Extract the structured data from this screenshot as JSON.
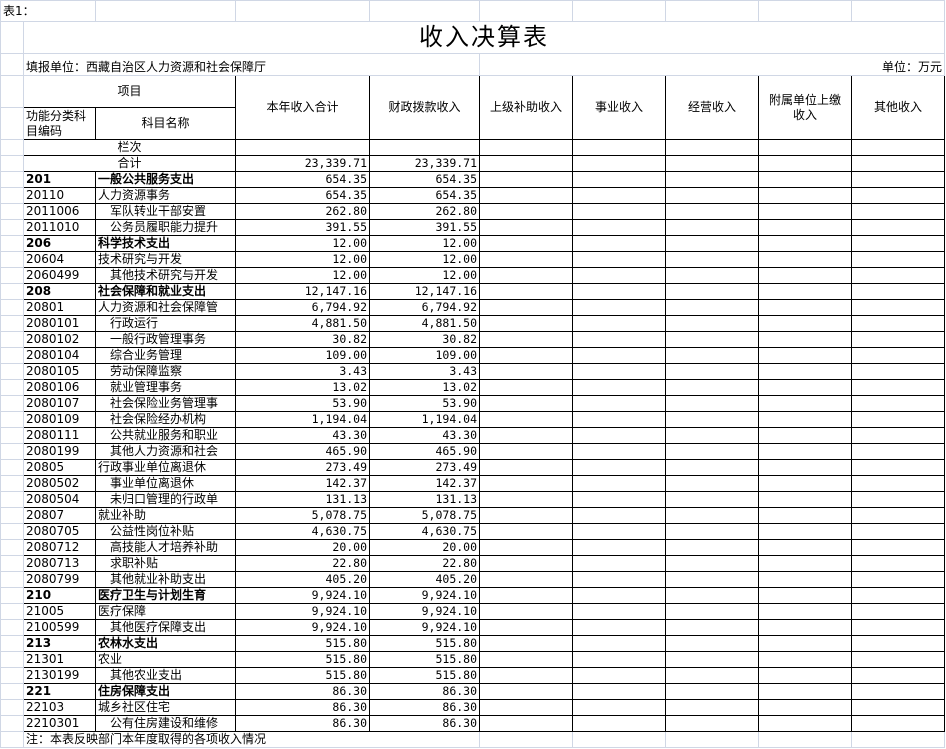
{
  "sheet_label": "表1：",
  "title": "收入决算表",
  "unit_org": "填报单位：西藏自治区人力资源和社会保障厅",
  "unit": "单位：万元",
  "headers": {
    "item": "项目",
    "code": "功能分类科目编码",
    "name": "科目名称",
    "total": "本年收入合计",
    "fiscal": "财政拨款收入",
    "upper_subsidy": "上级补助收入",
    "business": "事业收入",
    "operating": "经营收入",
    "affiliated": "附属单位上缴收入",
    "other": "其他收入"
  },
  "column_index_label": "栏次",
  "sum_row": {
    "label": "合计",
    "total": "23,339.71",
    "fiscal": "23,339.71"
  },
  "rows": [
    {
      "code": "201",
      "name": "一般公共服务支出",
      "level": 1,
      "total": "654.35",
      "fiscal": "654.35"
    },
    {
      "code": "20110",
      "name": "人力资源事务",
      "level": 2,
      "total": "654.35",
      "fiscal": "654.35"
    },
    {
      "code": "2011006",
      "name": "军队转业干部安置",
      "level": 3,
      "total": "262.80",
      "fiscal": "262.80"
    },
    {
      "code": "2011010",
      "name": "公务员履职能力提升",
      "level": 3,
      "total": "391.55",
      "fiscal": "391.55"
    },
    {
      "code": "206",
      "name": "科学技术支出",
      "level": 1,
      "total": "12.00",
      "fiscal": "12.00"
    },
    {
      "code": "20604",
      "name": "技术研究与开发",
      "level": 2,
      "total": "12.00",
      "fiscal": "12.00"
    },
    {
      "code": "2060499",
      "name": "其他技术研究与开发",
      "level": 3,
      "total": "12.00",
      "fiscal": "12.00"
    },
    {
      "code": "208",
      "name": "社会保障和就业支出",
      "level": 1,
      "total": "12,147.16",
      "fiscal": "12,147.16"
    },
    {
      "code": "20801",
      "name": "人力资源和社会保障管",
      "level": 2,
      "total": "6,794.92",
      "fiscal": "6,794.92"
    },
    {
      "code": "2080101",
      "name": "行政运行",
      "level": 3,
      "total": "4,881.50",
      "fiscal": "4,881.50"
    },
    {
      "code": "2080102",
      "name": "一般行政管理事务",
      "level": 3,
      "total": "30.82",
      "fiscal": "30.82"
    },
    {
      "code": "2080104",
      "name": "综合业务管理",
      "level": 3,
      "total": "109.00",
      "fiscal": "109.00"
    },
    {
      "code": "2080105",
      "name": "劳动保障监察",
      "level": 3,
      "total": "3.43",
      "fiscal": "3.43"
    },
    {
      "code": "2080106",
      "name": "就业管理事务",
      "level": 3,
      "total": "13.02",
      "fiscal": "13.02"
    },
    {
      "code": "2080107",
      "name": "社会保险业务管理事",
      "level": 3,
      "total": "53.90",
      "fiscal": "53.90"
    },
    {
      "code": "2080109",
      "name": "社会保险经办机构",
      "level": 3,
      "total": "1,194.04",
      "fiscal": "1,194.04"
    },
    {
      "code": "2080111",
      "name": "公共就业服务和职业",
      "level": 3,
      "total": "43.30",
      "fiscal": "43.30"
    },
    {
      "code": "2080199",
      "name": "其他人力资源和社会",
      "level": 3,
      "total": "465.90",
      "fiscal": "465.90"
    },
    {
      "code": "20805",
      "name": "行政事业单位离退休",
      "level": 2,
      "total": "273.49",
      "fiscal": "273.49"
    },
    {
      "code": "2080502",
      "name": "事业单位离退休",
      "level": 3,
      "total": "142.37",
      "fiscal": "142.37"
    },
    {
      "code": "2080504",
      "name": "未归口管理的行政单",
      "level": 3,
      "total": "131.13",
      "fiscal": "131.13"
    },
    {
      "code": "20807",
      "name": "就业补助",
      "level": 2,
      "total": "5,078.75",
      "fiscal": "5,078.75"
    },
    {
      "code": "2080705",
      "name": "公益性岗位补贴",
      "level": 3,
      "total": "4,630.75",
      "fiscal": "4,630.75"
    },
    {
      "code": "2080712",
      "name": "高技能人才培养补助",
      "level": 3,
      "total": "20.00",
      "fiscal": "20.00"
    },
    {
      "code": "2080713",
      "name": "求职补贴",
      "level": 3,
      "total": "22.80",
      "fiscal": "22.80"
    },
    {
      "code": "2080799",
      "name": "其他就业补助支出",
      "level": 3,
      "total": "405.20",
      "fiscal": "405.20"
    },
    {
      "code": "210",
      "name": "医疗卫生与计划生育",
      "level": 1,
      "total": "9,924.10",
      "fiscal": "9,924.10"
    },
    {
      "code": "21005",
      "name": "医疗保障",
      "level": 2,
      "total": "9,924.10",
      "fiscal": "9,924.10"
    },
    {
      "code": "2100599",
      "name": "其他医疗保障支出",
      "level": 3,
      "total": "9,924.10",
      "fiscal": "9,924.10"
    },
    {
      "code": "213",
      "name": "农林水支出",
      "level": 1,
      "total": "515.80",
      "fiscal": "515.80"
    },
    {
      "code": "21301",
      "name": "农业",
      "level": 2,
      "total": "515.80",
      "fiscal": "515.80"
    },
    {
      "code": "2130199",
      "name": "其他农业支出",
      "level": 3,
      "total": "515.80",
      "fiscal": "515.80"
    },
    {
      "code": "221",
      "name": "住房保障支出",
      "level": 1,
      "total": "86.30",
      "fiscal": "86.30"
    },
    {
      "code": "22103",
      "name": "城乡社区住宅",
      "level": 2,
      "total": "86.30",
      "fiscal": "86.30"
    },
    {
      "code": "2210301",
      "name": "公有住房建设和维修",
      "level": 3,
      "total": "86.30",
      "fiscal": "86.30"
    }
  ],
  "note": "注：本表反映部门本年度取得的各项收入情况"
}
